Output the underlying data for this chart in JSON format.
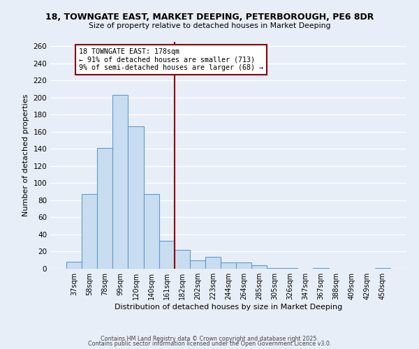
{
  "title": "18, TOWNGATE EAST, MARKET DEEPING, PETERBOROUGH, PE6 8DR",
  "subtitle": "Size of property relative to detached houses in Market Deeping",
  "xlabel": "Distribution of detached houses by size in Market Deeping",
  "ylabel": "Number of detached properties",
  "categories": [
    "37sqm",
    "58sqm",
    "78sqm",
    "99sqm",
    "120sqm",
    "140sqm",
    "161sqm",
    "182sqm",
    "202sqm",
    "223sqm",
    "244sqm",
    "264sqm",
    "285sqm",
    "305sqm",
    "326sqm",
    "347sqm",
    "367sqm",
    "388sqm",
    "409sqm",
    "429sqm",
    "450sqm"
  ],
  "values": [
    8,
    87,
    141,
    203,
    166,
    87,
    33,
    22,
    10,
    14,
    7,
    7,
    4,
    1,
    1,
    0,
    1,
    0,
    0,
    0,
    1
  ],
  "bar_color": "#c9ddf0",
  "bar_edge_color": "#5b9bd5",
  "background_color": "#e8eef8",
  "grid_color": "#ffffff",
  "vline_index": 7,
  "vline_color": "#8b0000",
  "annotation_title": "18 TOWNGATE EAST: 178sqm",
  "annotation_line1": "← 91% of detached houses are smaller (713)",
  "annotation_line2": "9% of semi-detached houses are larger (68) →",
  "annotation_box_edge_color": "#8b0000",
  "ylim": [
    0,
    265
  ],
  "yticks": [
    0,
    20,
    40,
    60,
    80,
    100,
    120,
    140,
    160,
    180,
    200,
    220,
    240,
    260
  ],
  "footer1": "Contains HM Land Registry data © Crown copyright and database right 2025.",
  "footer2": "Contains public sector information licensed under the Open Government Licence v3.0."
}
